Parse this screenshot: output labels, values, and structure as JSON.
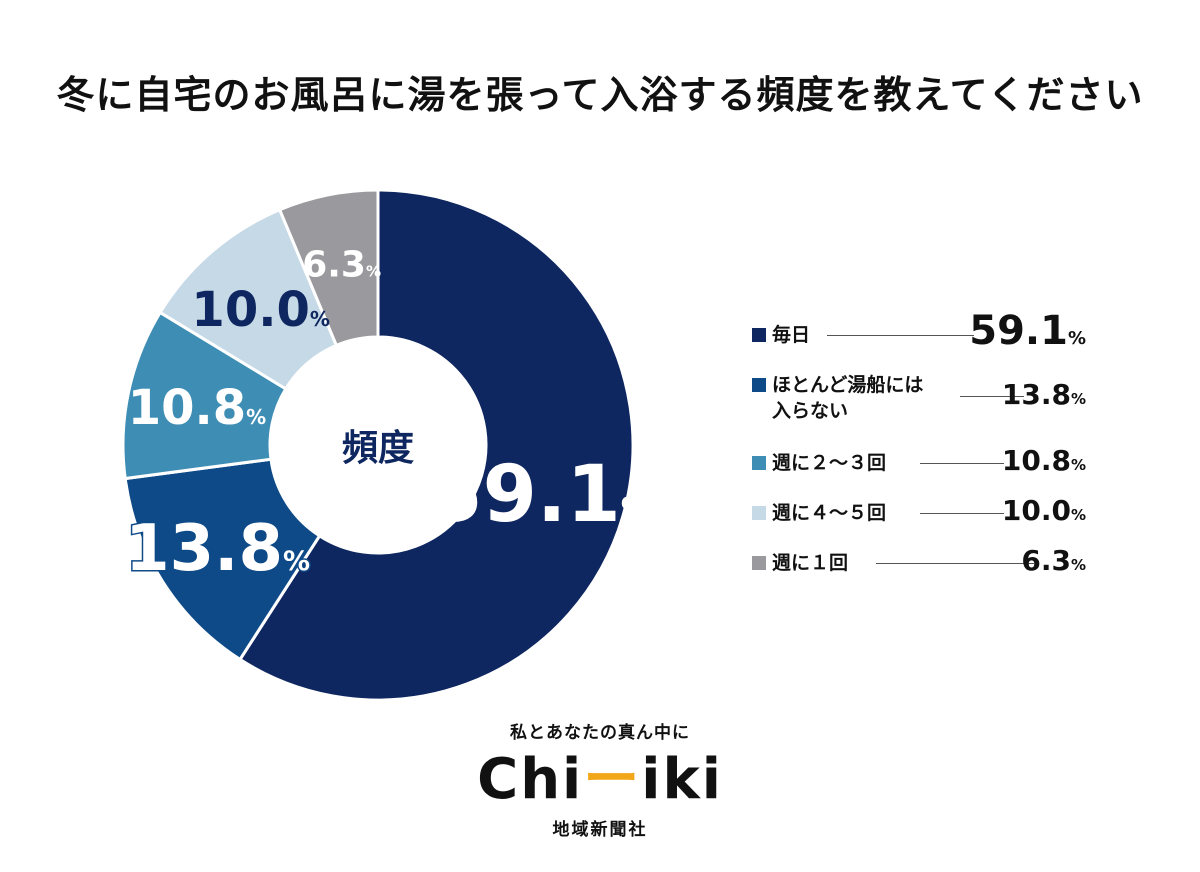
{
  "title": "冬に自宅のお風呂に湯を張って入浴する頻度を教えてください",
  "chart_data": {
    "type": "pie",
    "center_label": "頻度",
    "categories": [
      "毎日",
      "ほとんど湯船には入らない",
      "週に２〜３回",
      "週に４〜５回",
      "週に１回"
    ],
    "legend_lines": [
      [
        "毎日"
      ],
      [
        "ほとんど湯船には",
        "入らない"
      ],
      [
        "週に２〜３回"
      ],
      [
        "週に４〜５回"
      ],
      [
        "週に１回"
      ]
    ],
    "values": [
      59.1,
      13.8,
      10.8,
      10.0,
      6.3
    ],
    "colors": [
      "#0f2760",
      "#0e4a87",
      "#3e8db4",
      "#c6d9e6",
      "#9a9a9e"
    ],
    "slice_labels": [
      "59.1",
      "13.8",
      "10.8",
      "10.0",
      "6.3"
    ],
    "unit": "%"
  },
  "logo": {
    "tagline": "私とあなたの真ん中に",
    "brand_left": "Chi",
    "brand_mid": "ー",
    "brand_right": "iki",
    "company": "地域新聞社"
  }
}
